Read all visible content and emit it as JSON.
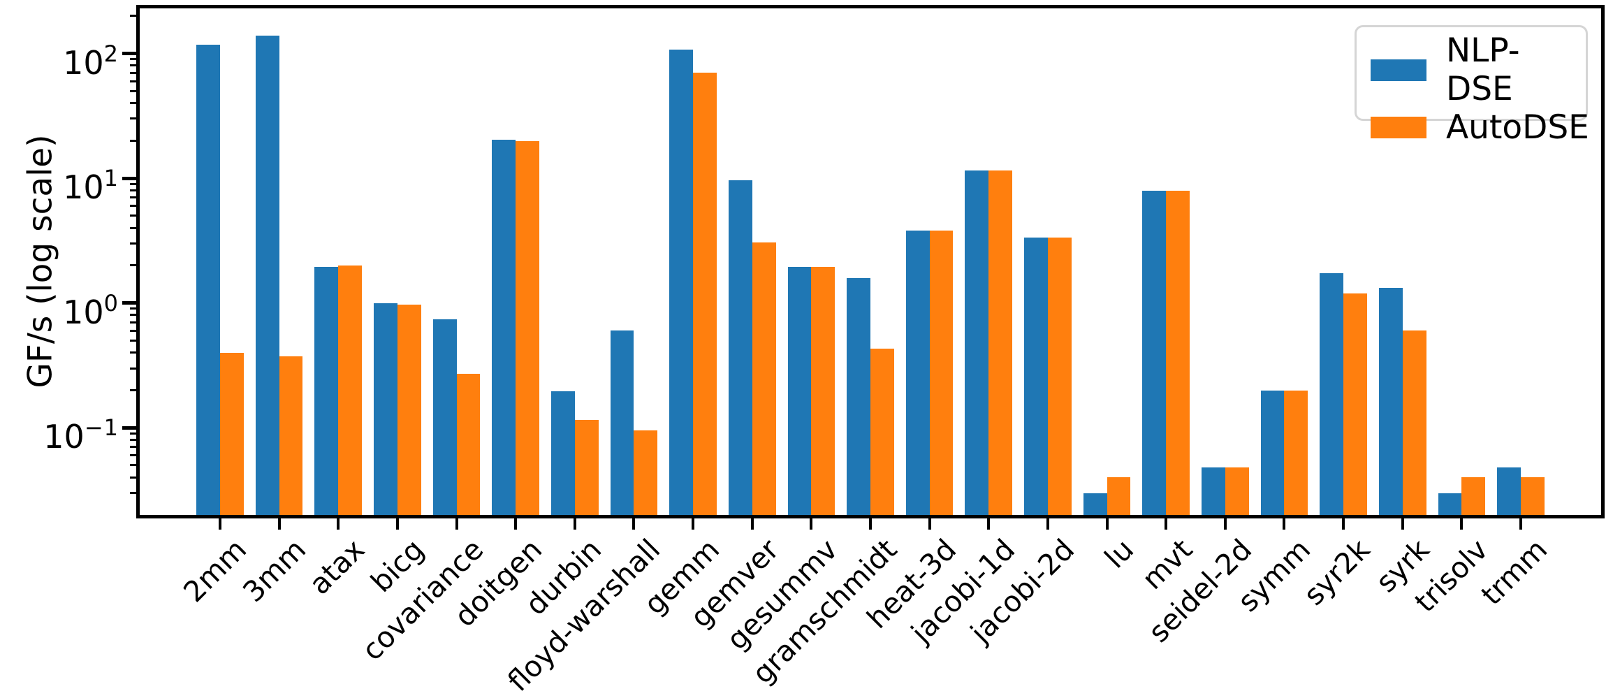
{
  "colors": {
    "nlp_dse": "#1f77b4",
    "autodse": "#ff7f0e",
    "axis": "#000000",
    "legend_border": "#d5d5d5",
    "background": "#ffffff"
  },
  "chart_data": {
    "type": "bar",
    "title": "",
    "xlabel": "",
    "ylabel": "GF/s (log scale)",
    "yscale": "log",
    "ylim": [
      0.02,
      230
    ],
    "grid": false,
    "legend_position": "upper right",
    "categories": [
      "2mm",
      "3mm",
      "atax",
      "bicg",
      "covariance",
      "doitgen",
      "durbin",
      "floyd-warshall",
      "gemm",
      "gemver",
      "gesummv",
      "gramschmidt",
      "heat-3d",
      "jacobi-1d",
      "jacobi-2d",
      "lu",
      "mvt",
      "seidel-2d",
      "symm",
      "syr2k",
      "syrk",
      "trisolv",
      "trmm"
    ],
    "series": [
      {
        "name": "NLP-DSE",
        "color": "#1f77b4",
        "values": [
          118,
          140,
          1.95,
          1.0,
          0.74,
          20.5,
          0.195,
          0.6,
          108,
          9.7,
          1.95,
          1.58,
          3.8,
          11.6,
          3.35,
          0.03,
          7.9,
          0.048,
          0.2,
          1.73,
          1.32,
          0.03,
          0.048
        ]
      },
      {
        "name": "AutoDSE",
        "color": "#ff7f0e",
        "values": [
          0.4,
          0.375,
          2.0,
          0.97,
          0.27,
          19.8,
          0.115,
          0.095,
          70,
          3.05,
          1.95,
          0.43,
          3.8,
          11.6,
          3.35,
          0.04,
          7.9,
          0.048,
          0.2,
          1.19,
          0.6,
          0.04,
          0.04
        ]
      }
    ],
    "y_ticks": [
      {
        "value": 100,
        "base": "10",
        "exp": "2"
      },
      {
        "value": 10,
        "base": "10",
        "exp": "1"
      },
      {
        "value": 1,
        "base": "10",
        "exp": "0"
      },
      {
        "value": 0.1,
        "base": "10",
        "exp": "−1"
      }
    ]
  }
}
